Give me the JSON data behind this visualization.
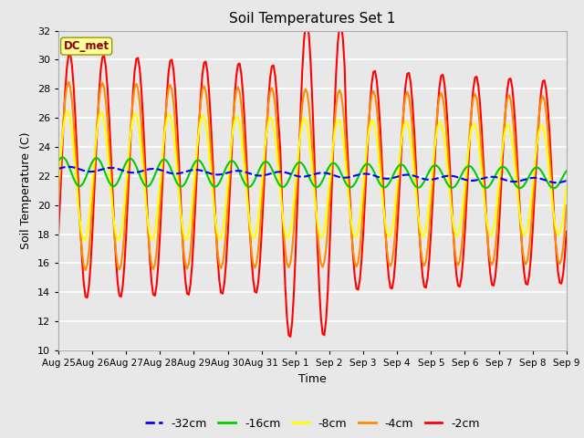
{
  "title": "Soil Temperatures Set 1",
  "xlabel": "Time",
  "ylabel": "Soil Temperature (C)",
  "ylim": [
    10,
    32
  ],
  "yticks": [
    10,
    12,
    14,
    16,
    18,
    20,
    22,
    24,
    26,
    28,
    30,
    32
  ],
  "background_color": "#e8e8e8",
  "plot_bg_color": "#e8e8e8",
  "grid_color": "#ffffff",
  "annotation_text": "DC_met",
  "annotation_color": "#8b0000",
  "annotation_bg": "#ffff99",
  "x_labels": [
    "Aug 25",
    "Aug 26",
    "Aug 27",
    "Aug 28",
    "Aug 29",
    "Aug 30",
    "Aug 31",
    "Sep 1",
    "Sep 2",
    "Sep 3",
    "Sep 4",
    "Sep 5",
    "Sep 6",
    "Sep 7",
    "Sep 8",
    "Sep 9"
  ],
  "series_order": [
    "-2cm",
    "-4cm",
    "-8cm",
    "-16cm",
    "-32cm"
  ],
  "series": {
    "-32cm": {
      "color": "#0000ff",
      "linewidth": 1.5,
      "dashed": true
    },
    "-16cm": {
      "color": "#00cc00",
      "linewidth": 1.5,
      "dashed": false
    },
    "-8cm": {
      "color": "#ffff00",
      "linewidth": 1.5,
      "dashed": false
    },
    "-4cm": {
      "color": "#ff8c00",
      "linewidth": 1.5,
      "dashed": false
    },
    "-2cm": {
      "color": "#ff0000",
      "linewidth": 1.5,
      "dashed": false
    }
  },
  "figsize": [
    6.4,
    4.8
  ],
  "dpi": 100
}
